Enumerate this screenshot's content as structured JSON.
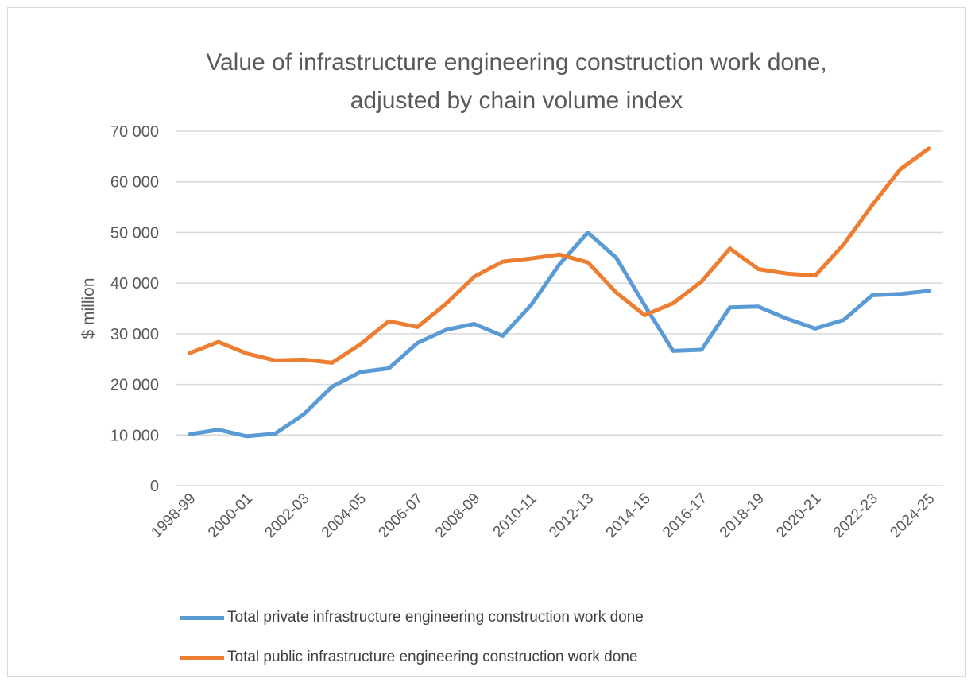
{
  "chart_data": {
    "type": "line",
    "title": "Value of infrastructure engineering construction work done, adjusted by chain volume index",
    "title_lines": [
      "Value of infrastructure engineering construction work done,",
      "adjusted by chain volume index"
    ],
    "xlabel": "",
    "ylabel": "$ million",
    "ylim": [
      0,
      70000
    ],
    "yticks": [
      0,
      10000,
      20000,
      30000,
      40000,
      50000,
      60000,
      70000
    ],
    "ytick_labels": [
      "0",
      "10 000",
      "20 000",
      "30 000",
      "40 000",
      "50 000",
      "60 000",
      "70 000"
    ],
    "grid": true,
    "legend_position": "bottom",
    "categories": [
      "1998-99",
      "1999-00",
      "2000-01",
      "2001-02",
      "2002-03",
      "2003-04",
      "2004-05",
      "2005-06",
      "2006-07",
      "2007-08",
      "2008-09",
      "2009-10",
      "2010-11",
      "2011-12",
      "2012-13",
      "2013-14",
      "2014-15",
      "2015-16",
      "2016-17",
      "2017-18",
      "2018-19",
      "2019-20",
      "2020-21",
      "2021-22",
      "2022-23",
      "2023-24",
      "2024-25"
    ],
    "xtick_labels": [
      "1998-99",
      "2000-01",
      "2002-03",
      "2004-05",
      "2006-07",
      "2008-09",
      "2010-11",
      "2012-13",
      "2014-15",
      "2016-17",
      "2018-19",
      "2020-21",
      "2022-23",
      "2024-25"
    ],
    "series": [
      {
        "name": "Total private infrastructure engineering construction work done",
        "color": "#5b9bd5",
        "values": [
          10150,
          11050,
          9750,
          10270,
          14080,
          19560,
          22440,
          23170,
          28180,
          30750,
          31940,
          29590,
          35610,
          43700,
          49970,
          45010,
          35600,
          26620,
          26840,
          35190,
          35350,
          32990,
          31010,
          32730,
          37590,
          37850,
          38480
        ]
      },
      {
        "name": "Total public infrastructure engineering construction work done",
        "color": "#ed7d31",
        "values": [
          26200,
          28400,
          26100,
          24730,
          24890,
          24270,
          27930,
          32480,
          31320,
          35860,
          41250,
          44230,
          44860,
          45640,
          44080,
          38120,
          33670,
          36020,
          40310,
          46840,
          42760,
          41880,
          41460,
          47620,
          55360,
          62510,
          66580
        ]
      }
    ]
  }
}
